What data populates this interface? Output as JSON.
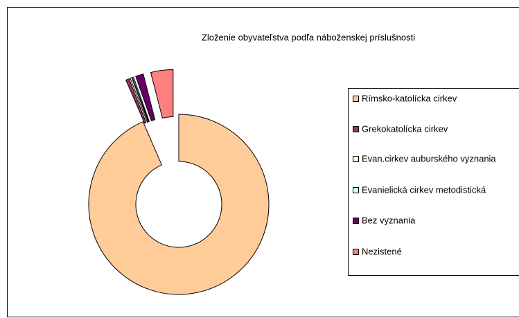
{
  "chart_data": {
    "type": "doughnut",
    "title": "Zloženie obyvateľstva podľa náboženskej príslušnosti",
    "categories": [
      "Rímsko-katolícka cirkev",
      "Grekokatolícka cirkev",
      "Evan.cirkev auburského vyznania",
      "Evanielická cirkev metodistická",
      "Bez  vyznania",
      "Nezistené"
    ],
    "values": [
      93.5,
      0.6,
      0.3,
      0.2,
      1.4,
      4.0
    ],
    "colors": [
      "#ffcc99",
      "#993366",
      "#ffffcc",
      "#ccffff",
      "#660066",
      "#ff8080"
    ],
    "legend": "right"
  }
}
